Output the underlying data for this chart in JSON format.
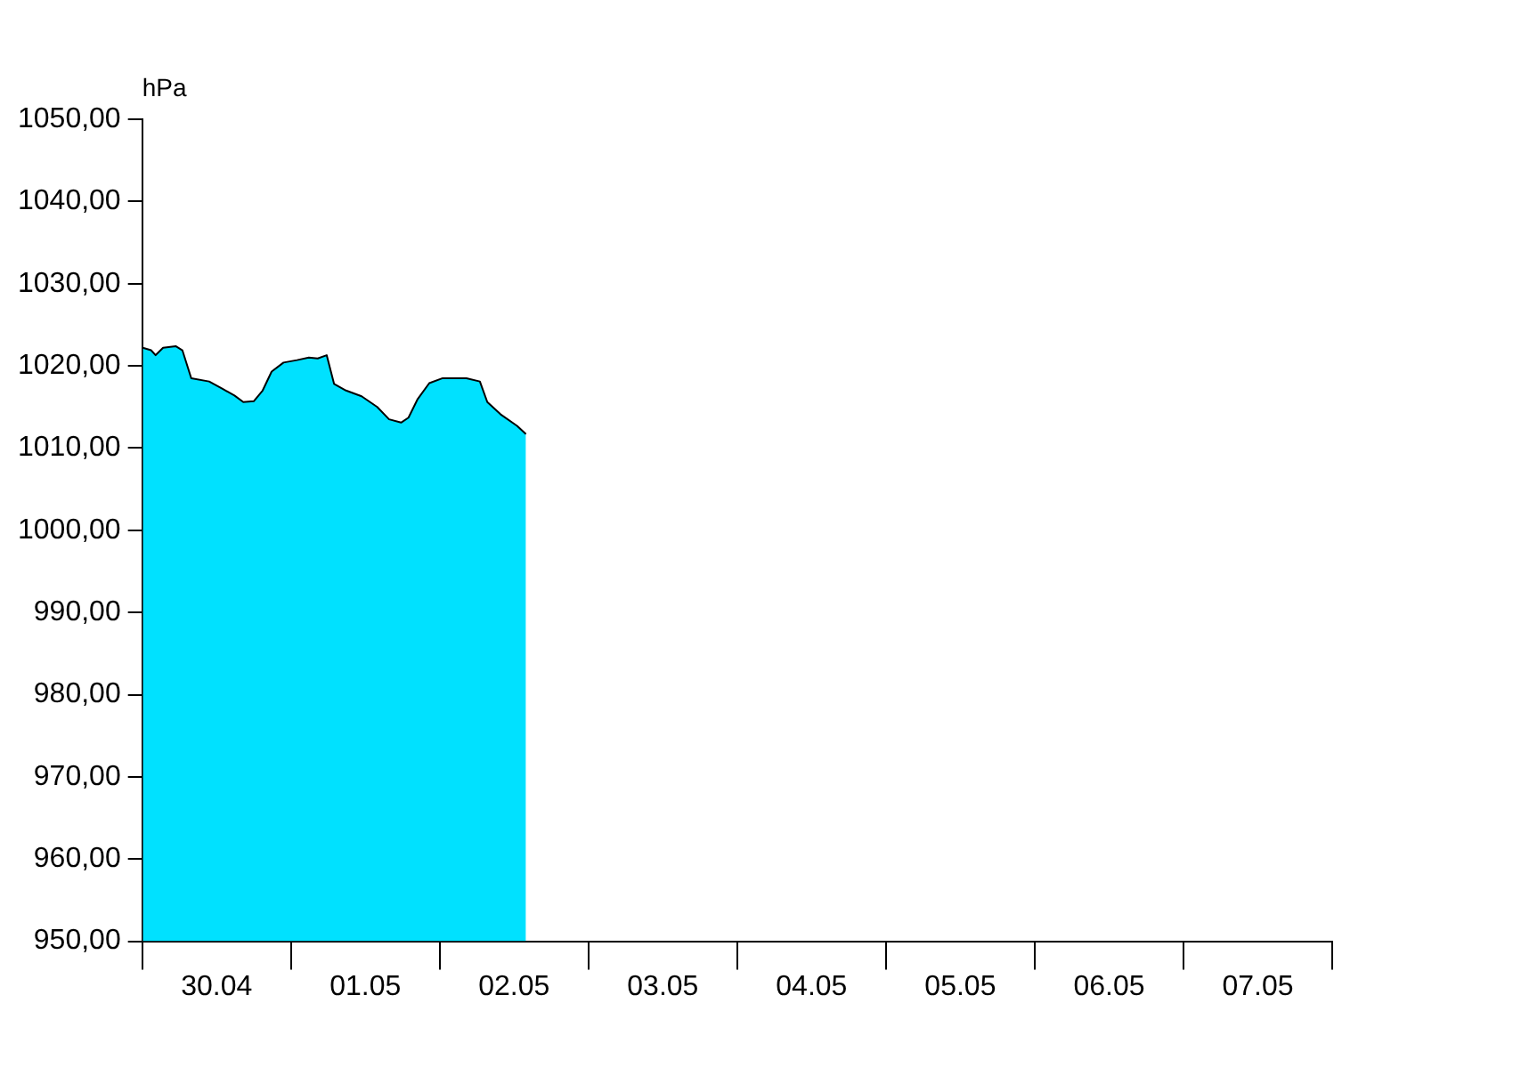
{
  "chart_data": {
    "type": "area",
    "ylabel": "hPa",
    "color": "#00e1ff",
    "x": [
      "--04-30T00:06",
      "--04-30T01:26",
      "--04-30T02:10",
      "--04-30T03:22",
      "--04-30T05:24",
      "--04-30T06:29",
      "--04-30T07:55",
      "--04-30T10:48",
      "--04-30T12:58",
      "--04-30T14:53",
      "--04-30T16:19",
      "--04-30T18:00",
      "--04-30T19:26",
      "--04-30T20:53",
      "--04-30T22:48",
      "--05-01T00:58",
      "--05-01T02:53",
      "--05-01T04:19",
      "--05-01T05:46",
      "--05-01T06:58",
      "--05-01T08:53",
      "--05-01T11:24",
      "--05-01T13:55",
      "--05-01T15:50",
      "--05-01T17:46",
      "--05-01T18:58",
      "--05-01T20:24",
      "--05-01T22:19",
      "--05-02T00:29",
      "--05-02T04:19",
      "--05-02T06:29",
      "--05-02T07:41",
      "--05-02T09:50",
      "--05-02T12:29",
      "--05-02T13:55"
    ],
    "values": [
      1022.2,
      1021.9,
      1021.3,
      1022.2,
      1022.4,
      1021.9,
      1018.5,
      1018.1,
      1017.2,
      1016.4,
      1015.6,
      1015.7,
      1017.0,
      1019.3,
      1020.4,
      1020.7,
      1021.0,
      1020.9,
      1021.3,
      1017.8,
      1017.0,
      1016.3,
      1015.0,
      1013.5,
      1013.1,
      1013.7,
      1015.9,
      1017.9,
      1018.5,
      1018.5,
      1018.1,
      1015.6,
      1014.1,
      1012.7,
      1011.7
    ],
    "xlim": [
      "--04-30",
      "--05-08"
    ],
    "xticks": [
      {
        "value": "--04-30",
        "label": null
      },
      {
        "value": "--04-30T12:00",
        "label": "30.04"
      },
      {
        "value": "--05-01",
        "label": null
      },
      {
        "value": "--05-01T12:00",
        "label": "01.05"
      },
      {
        "value": "--05-02",
        "label": null
      },
      {
        "value": "--05-02T12:00",
        "label": "02.05"
      },
      {
        "value": "--05-03",
        "label": null
      },
      {
        "value": "--05-03T12:00",
        "label": "03.05"
      },
      {
        "value": "--05-04",
        "label": null
      },
      {
        "value": "--05-04T12:00",
        "label": "04.05"
      },
      {
        "value": "--05-05",
        "label": null
      },
      {
        "value": "--05-05T12:00",
        "label": "05.05"
      },
      {
        "value": "--05-06",
        "label": null
      },
      {
        "value": "--05-06T12:00",
        "label": "06.05"
      },
      {
        "value": "--05-07",
        "label": null
      },
      {
        "value": "--05-07T12:00",
        "label": "07.05"
      },
      {
        "value": "--05-08",
        "label": null
      }
    ],
    "ylim": [
      950,
      1050
    ],
    "yticks": [
      {
        "value": 950,
        "label": "950,00"
      },
      {
        "value": 960,
        "label": "960,00"
      },
      {
        "value": 970,
        "label": "970,00"
      },
      {
        "value": 980,
        "label": "980,00"
      },
      {
        "value": 990,
        "label": "990,00"
      },
      {
        "value": 1000,
        "label": "1000,00"
      },
      {
        "value": 1010,
        "label": "1010,00"
      },
      {
        "value": 1020,
        "label": "1020,00"
      },
      {
        "value": 1030,
        "label": "1030,00"
      },
      {
        "value": 1040,
        "label": "1040,00"
      },
      {
        "value": 1050,
        "label": "1050,00"
      }
    ]
  }
}
